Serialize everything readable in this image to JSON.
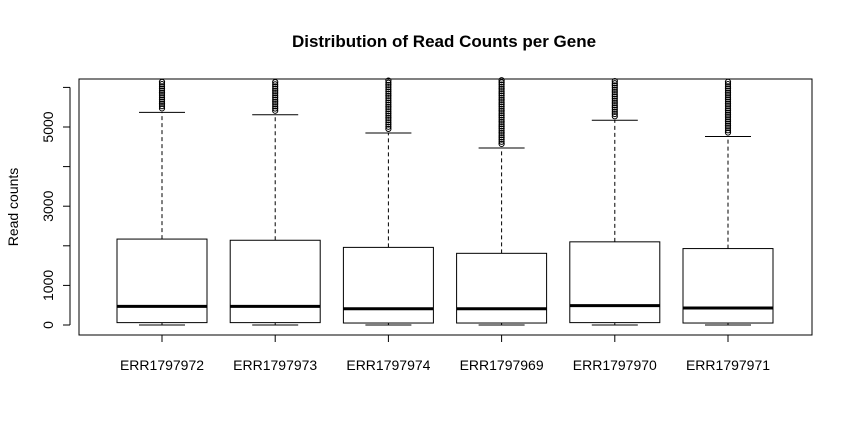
{
  "chart_data": {
    "type": "boxplot",
    "title": "Distribution of Read Counts per Gene",
    "xlabel": "",
    "ylabel": "Read counts",
    "ylim": [
      -200,
      6250
    ],
    "yticks": [
      0,
      1000,
      3000,
      5000
    ],
    "grid": false,
    "categories": [
      "ERR1797972",
      "ERR1797973",
      "ERR1797974",
      "ERR1797969",
      "ERR1797970",
      "ERR1797971"
    ],
    "series": [
      {
        "q1": 60,
        "median": 470,
        "q3": 2170,
        "whisker_low": 0,
        "whisker_high": 5370,
        "outliers_from": 5370
      },
      {
        "q1": 60,
        "median": 470,
        "q3": 2140,
        "whisker_low": 0,
        "whisker_high": 5310,
        "outliers_from": 5310
      },
      {
        "q1": 50,
        "median": 410,
        "q3": 1960,
        "whisker_low": 0,
        "whisker_high": 4850,
        "outliers_from": 4850
      },
      {
        "q1": 50,
        "median": 410,
        "q3": 1810,
        "whisker_low": 0,
        "whisker_high": 4470,
        "outliers_from": 4470
      },
      {
        "q1": 60,
        "median": 490,
        "q3": 2100,
        "whisker_low": 0,
        "whisker_high": 5170,
        "outliers_from": 5170
      },
      {
        "q1": 50,
        "median": 430,
        "q3": 1930,
        "whisker_low": 0,
        "whisker_high": 4760,
        "outliers_from": 4760
      }
    ]
  }
}
